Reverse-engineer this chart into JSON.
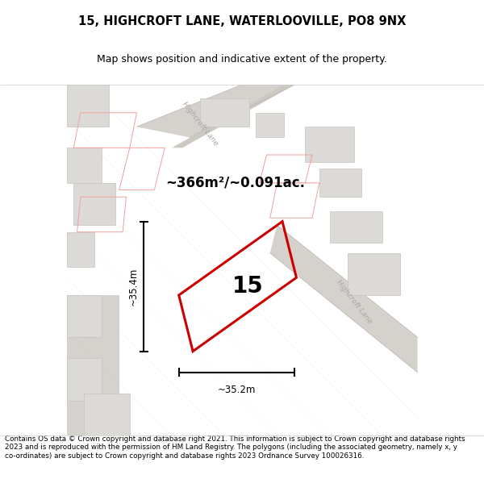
{
  "title": "15, HIGHCROFT LANE, WATERLOOVILLE, PO8 9NX",
  "subtitle": "Map shows position and indicative extent of the property.",
  "footer": "Contains OS data © Crown copyright and database right 2021. This information is subject to Crown copyright and database rights 2023 and is reproduced with the permission of HM Land Registry. The polygons (including the associated geometry, namely x, y co-ordinates) are subject to Crown copyright and database rights 2023 Ordnance Survey 100026316.",
  "area_label": "~366m²/~0.091ac.",
  "plot_number": "15",
  "dim_vertical": "~35.4m",
  "dim_horizontal": "~35.2m",
  "bg_color": "#f0eeec",
  "plot_color": "#cc0000",
  "road_label_1": "Highcroft Lane",
  "road_label_2": "Highcroft Lane",
  "map_bg": "#e8e6e4"
}
